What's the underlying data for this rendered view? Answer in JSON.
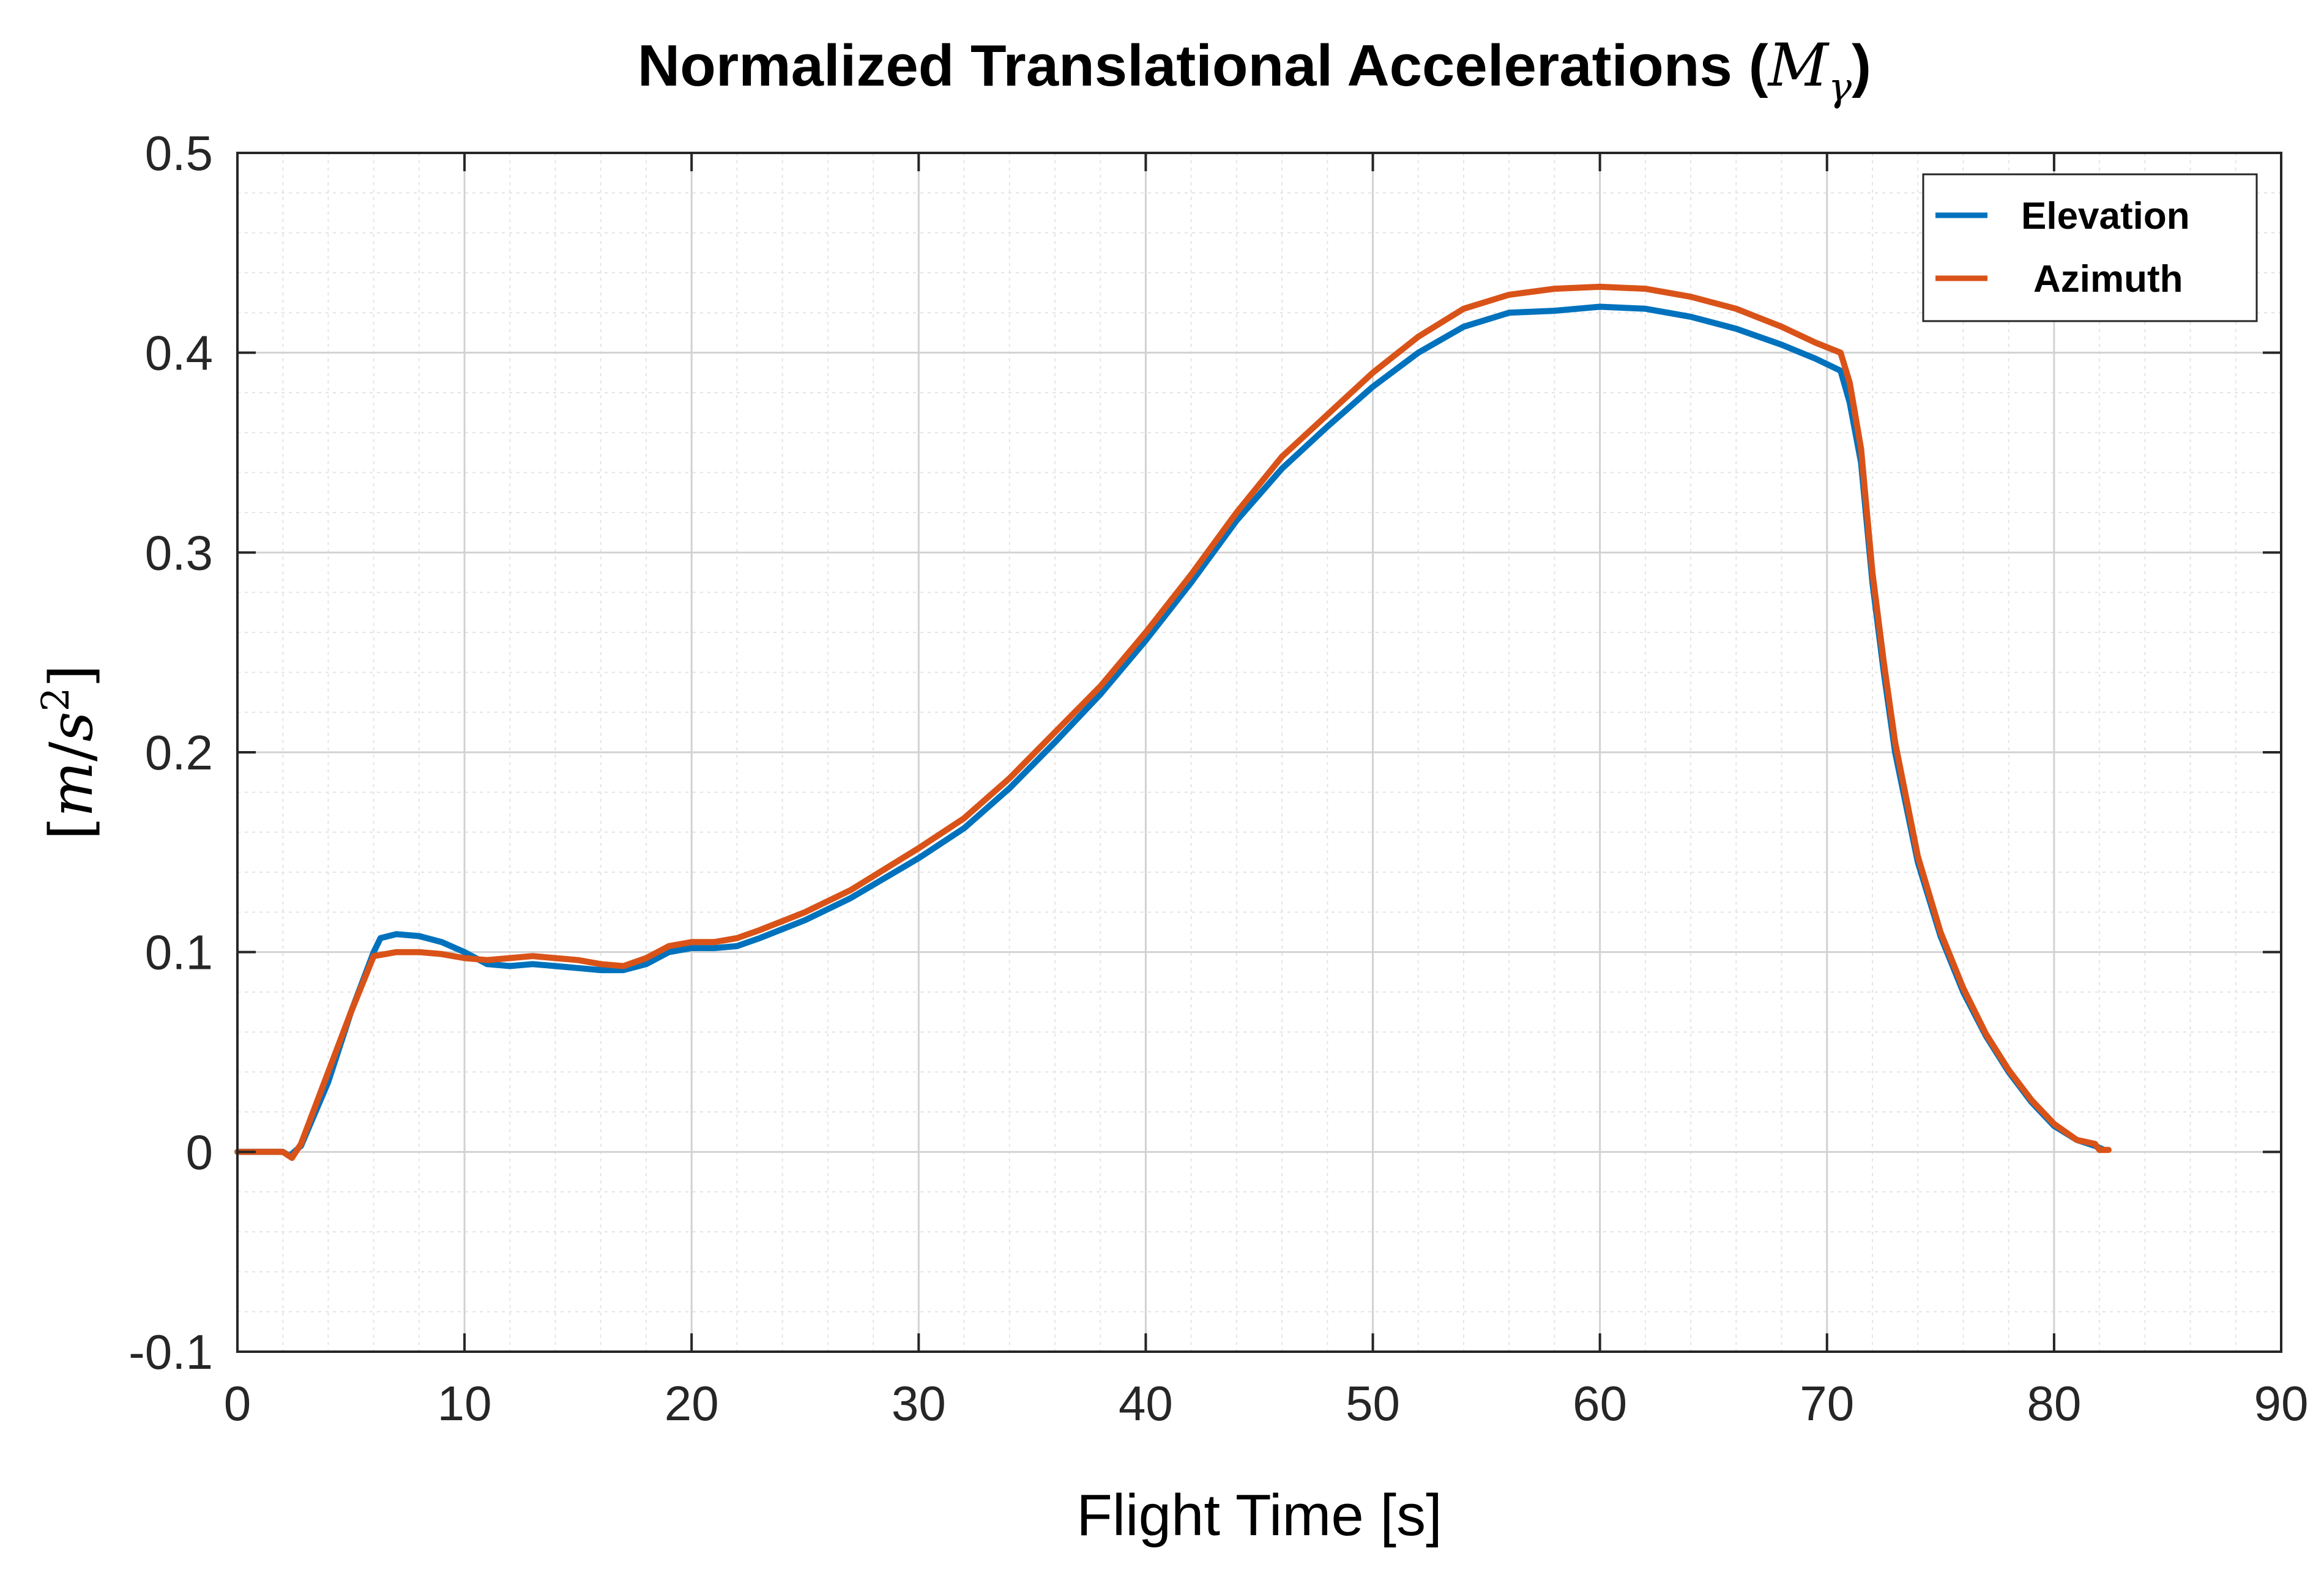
{
  "chart_data": {
    "type": "line",
    "title": "Normalized Translational Accelerations (",
    "title_math": "M",
    "title_sub": "γ",
    "title_close": ")",
    "xlabel": "Flight Time [s]",
    "ylabel": "[m/s²]",
    "ylabel_parts": {
      "open": "[",
      "m": "m",
      "slash": "/",
      "s": "s",
      "exp": "2",
      "close": "]"
    },
    "xlim": [
      0,
      90
    ],
    "ylim": [
      -0.1,
      0.5
    ],
    "xticks": [
      0,
      10,
      20,
      30,
      40,
      50,
      60,
      70,
      80,
      90
    ],
    "yticks": [
      -0.1,
      0,
      0.1,
      0.2,
      0.3,
      0.4,
      0.5
    ],
    "xtick_labels": [
      "0",
      "10",
      "20",
      "30",
      "40",
      "50",
      "60",
      "70",
      "80",
      "90"
    ],
    "ytick_labels": [
      "-0.1",
      "0",
      "0.1",
      "0.2",
      "0.3",
      "0.4",
      "0.5"
    ],
    "grid": true,
    "minor_grid": true,
    "legend_position": "top-right",
    "series": [
      {
        "name": "Elevation",
        "color": "#0072BD",
        "points": [
          [
            0,
            0
          ],
          [
            2,
            0
          ],
          [
            2.3,
            -0.002
          ],
          [
            2.8,
            0.003
          ],
          [
            4,
            0.035
          ],
          [
            5,
            0.07
          ],
          [
            6,
            0.1
          ],
          [
            6.3,
            0.107
          ],
          [
            7,
            0.109
          ],
          [
            8,
            0.108
          ],
          [
            9,
            0.105
          ],
          [
            10,
            0.1
          ],
          [
            11,
            0.094
          ],
          [
            12,
            0.093
          ],
          [
            13,
            0.094
          ],
          [
            14,
            0.093
          ],
          [
            15,
            0.092
          ],
          [
            16,
            0.091
          ],
          [
            17,
            0.091
          ],
          [
            18,
            0.094
          ],
          [
            19,
            0.1
          ],
          [
            20,
            0.102
          ],
          [
            21,
            0.102
          ],
          [
            22,
            0.103
          ],
          [
            23,
            0.107
          ],
          [
            25,
            0.116
          ],
          [
            27,
            0.127
          ],
          [
            30,
            0.147
          ],
          [
            32,
            0.162
          ],
          [
            34,
            0.182
          ],
          [
            36,
            0.205
          ],
          [
            38,
            0.229
          ],
          [
            40,
            0.256
          ],
          [
            42,
            0.285
          ],
          [
            44,
            0.316
          ],
          [
            46,
            0.342
          ],
          [
            48,
            0.363
          ],
          [
            50,
            0.383
          ],
          [
            52,
            0.4
          ],
          [
            54,
            0.413
          ],
          [
            56,
            0.42
          ],
          [
            58,
            0.421
          ],
          [
            60,
            0.423
          ],
          [
            62,
            0.422
          ],
          [
            64,
            0.418
          ],
          [
            66,
            0.412
          ],
          [
            68,
            0.404
          ],
          [
            69.5,
            0.397
          ],
          [
            70.6,
            0.391
          ],
          [
            71,
            0.375
          ],
          [
            71.5,
            0.345
          ],
          [
            72,
            0.285
          ],
          [
            72.5,
            0.24
          ],
          [
            73,
            0.2
          ],
          [
            74,
            0.145
          ],
          [
            75,
            0.108
          ],
          [
            76,
            0.08
          ],
          [
            77,
            0.058
          ],
          [
            78,
            0.04
          ],
          [
            79,
            0.025
          ],
          [
            80,
            0.013
          ],
          [
            81,
            0.006
          ],
          [
            81.8,
            0.003
          ],
          [
            82.2,
            0.001
          ]
        ]
      },
      {
        "name": "Azimuth",
        "color": "#D95319",
        "points": [
          [
            0,
            0
          ],
          [
            2,
            0
          ],
          [
            2.4,
            -0.003
          ],
          [
            2.8,
            0.004
          ],
          [
            4,
            0.04
          ],
          [
            5,
            0.07
          ],
          [
            6,
            0.098
          ],
          [
            7,
            0.1
          ],
          [
            8,
            0.1
          ],
          [
            9,
            0.099
          ],
          [
            10,
            0.097
          ],
          [
            11,
            0.096
          ],
          [
            12,
            0.097
          ],
          [
            13,
            0.098
          ],
          [
            14,
            0.097
          ],
          [
            15,
            0.096
          ],
          [
            16,
            0.094
          ],
          [
            17,
            0.093
          ],
          [
            18,
            0.097
          ],
          [
            19,
            0.103
          ],
          [
            20,
            0.105
          ],
          [
            21,
            0.105
          ],
          [
            22,
            0.107
          ],
          [
            23,
            0.111
          ],
          [
            25,
            0.12
          ],
          [
            27,
            0.131
          ],
          [
            30,
            0.152
          ],
          [
            32,
            0.167
          ],
          [
            34,
            0.187
          ],
          [
            36,
            0.21
          ],
          [
            38,
            0.233
          ],
          [
            40,
            0.26
          ],
          [
            42,
            0.289
          ],
          [
            44,
            0.32
          ],
          [
            46,
            0.348
          ],
          [
            48,
            0.369
          ],
          [
            50,
            0.39
          ],
          [
            52,
            0.408
          ],
          [
            54,
            0.422
          ],
          [
            56,
            0.429
          ],
          [
            58,
            0.432
          ],
          [
            60,
            0.433
          ],
          [
            62,
            0.432
          ],
          [
            64,
            0.428
          ],
          [
            66,
            0.422
          ],
          [
            68,
            0.413
          ],
          [
            69.5,
            0.405
          ],
          [
            70.6,
            0.4
          ],
          [
            71,
            0.385
          ],
          [
            71.5,
            0.352
          ],
          [
            72,
            0.29
          ],
          [
            72.5,
            0.245
          ],
          [
            73,
            0.205
          ],
          [
            74,
            0.148
          ],
          [
            75,
            0.11
          ],
          [
            76,
            0.082
          ],
          [
            77,
            0.059
          ],
          [
            78,
            0.041
          ],
          [
            79,
            0.026
          ],
          [
            80,
            0.014
          ],
          [
            81,
            0.006
          ],
          [
            81.8,
            0.004
          ],
          [
            82,
            0.001
          ],
          [
            82.4,
            0.001
          ]
        ]
      }
    ]
  }
}
